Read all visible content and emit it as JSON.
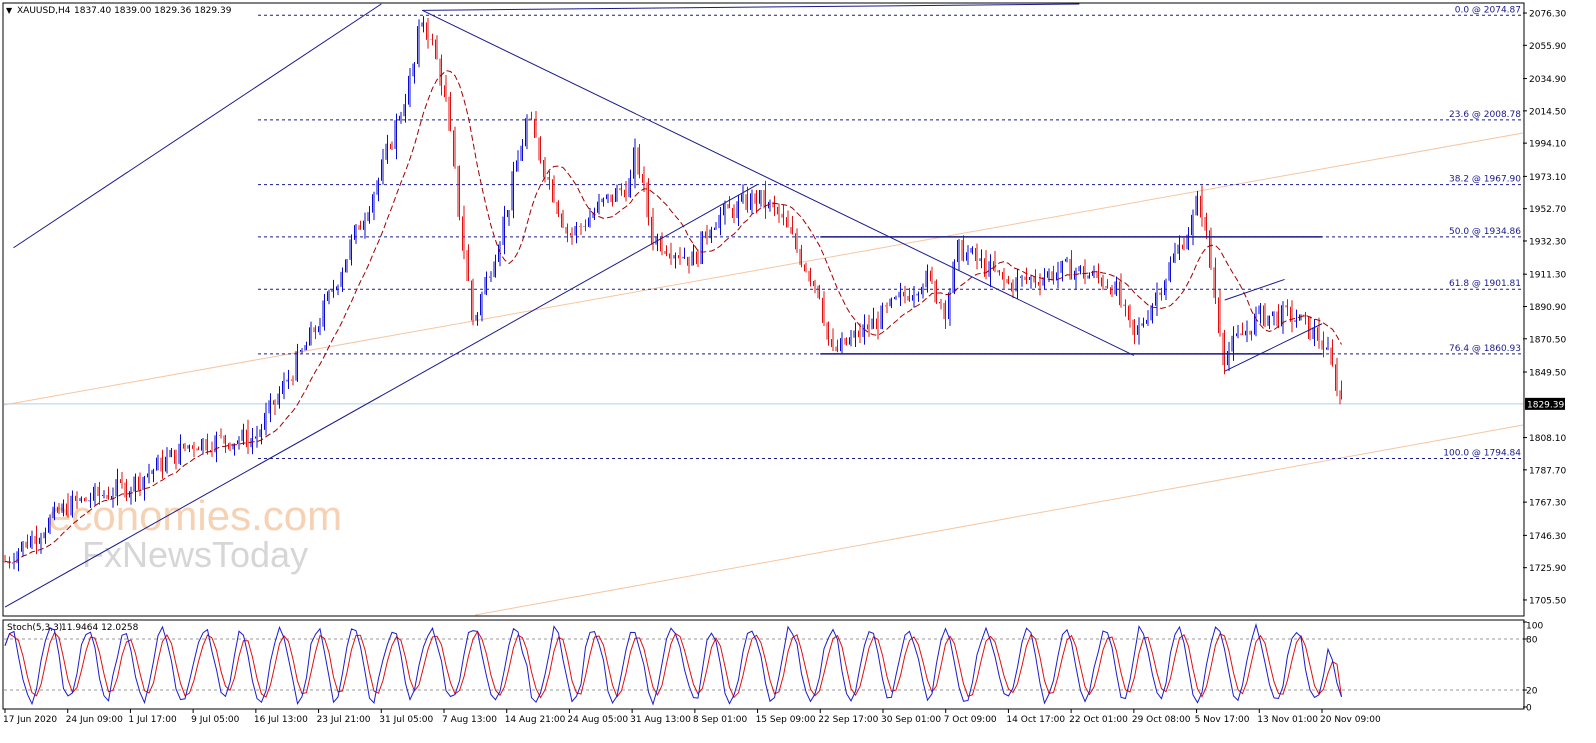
{
  "header": {
    "symbol": "XAUUSD,H4",
    "ohlc": "1837.40 1839.00 1829.36 1829.39"
  },
  "stoch_header": {
    "label": "Stoch(5,3,3)",
    "values": "11.9464 12.0258"
  },
  "current_price_label": "1829.39",
  "watermark": {
    "line1": "economies.com",
    "line2": "FxNewsToday"
  },
  "colors": {
    "bull": "#0a0ad2",
    "bear": "#e01010",
    "ma": "#a00000",
    "trend": "#1a1a8c",
    "fib": "#1a1a8c",
    "peach": "#f5c6a0",
    "stoch_main": "#1c1ccc",
    "stoch_signal": "#e01010",
    "current_price_line": "#a8d8e8",
    "watermark": "#f4c29a",
    "watermark2": "#c9c9c9"
  },
  "chart_data": [
    {
      "type": "candlestick",
      "title": "XAUUSD,H4",
      "ylim": [
        1696.0,
        2082.0
      ],
      "y_ticks": [
        "2076.30",
        "2055.90",
        "2034.90",
        "2014.50",
        "1994.10",
        "1973.10",
        "1952.70",
        "1932.30",
        "1911.30",
        "1890.90",
        "1870.50",
        "1849.50",
        "1829.39",
        "1808.10",
        "1787.70",
        "1767.30",
        "1746.30",
        "1725.90",
        "1705.50"
      ],
      "x_ticks": [
        "17 Jun 2020",
        "24 Jun 09:00",
        "1 Jul 17:00",
        "9 Jul 05:00",
        "16 Jul 13:00",
        "23 Jul 21:00",
        "31 Jul 05:00",
        "7 Aug 13:00",
        "14 Aug 21:00",
        "24 Aug 05:00",
        "31 Aug 13:00",
        "8 Sep 01:00",
        "15 Sep 09:00",
        "22 Sep 17:00",
        "30 Sep 01:00",
        "7 Oct 09:00",
        "14 Oct 17:00",
        "22 Oct 01:00",
        "29 Oct 08:00",
        "5 Nov 17:00",
        "13 Nov 01:00",
        "20 Nov 09:00"
      ],
      "fib_levels": [
        {
          "label": "0.0 @ 2074.87",
          "value": 2074.87
        },
        {
          "label": "23.6 @ 2008.78",
          "value": 2008.78
        },
        {
          "label": "38.2 @ 1967.90",
          "value": 1967.9
        },
        {
          "label": "50.0 @ 1934.86",
          "value": 1934.86
        },
        {
          "label": "61.8 @ 1901.81",
          "value": 1901.81
        },
        {
          "label": "76.4 @ 1860.93",
          "value": 1860.93
        },
        {
          "label": "100.0 @ 1794.84",
          "value": 1794.84
        }
      ],
      "current_price": 1829.39,
      "price_path": [
        [
          "17 Jun 2020",
          1730
        ],
        [
          "24 Jun 09:00",
          1765
        ],
        [
          "1 Jul 17:00",
          1778
        ],
        [
          "9 Jul 05:00",
          1805
        ],
        [
          "16 Jul 13:00",
          1808
        ],
        [
          "23 Jul 21:00",
          1880
        ],
        [
          "31 Jul 05:00",
          1975
        ],
        [
          "4 Aug",
          2040
        ],
        [
          "5 Aug",
          2074.87
        ],
        [
          "6 Aug",
          2060
        ],
        [
          "7 Aug 13:00",
          2030
        ],
        [
          "11 Aug",
          1880
        ],
        [
          "14 Aug 21:00",
          1950
        ],
        [
          "18 Aug",
          2010
        ],
        [
          "24 Aug 05:00",
          1935
        ],
        [
          "28 Aug",
          1955
        ],
        [
          "31 Aug 13:00",
          1970
        ],
        [
          "1 Sep",
          1990
        ],
        [
          "3 Sep",
          1935
        ],
        [
          "8 Sep 01:00",
          1920
        ],
        [
          "10 Sep",
          1945
        ],
        [
          "15 Sep 09:00",
          1960
        ],
        [
          "18 Sep",
          1948
        ],
        [
          "22 Sep 17:00",
          1900
        ],
        [
          "24 Sep",
          1860
        ],
        [
          "30 Sep 01:00",
          1885
        ],
        [
          "5 Oct",
          1910
        ],
        [
          "7 Oct 09:00",
          1890
        ],
        [
          "9 Oct",
          1928
        ],
        [
          "14 Oct 17:00",
          1905
        ],
        [
          "22 Oct 01:00",
          1915
        ],
        [
          "27 Oct",
          1905
        ],
        [
          "29 Oct 08:00",
          1870
        ],
        [
          "5 Nov 17:00",
          1950
        ],
        [
          "6 Nov",
          1965
        ],
        [
          "9 Nov",
          1860
        ],
        [
          "13 Nov 01:00",
          1885
        ],
        [
          "17 Nov",
          1885
        ],
        [
          "20 Nov 09:00",
          1870
        ],
        [
          "23 Nov",
          1829.39
        ]
      ],
      "trendlines": [
        {
          "name": "upper channel",
          "from": [
            "18 Jun",
            1928
          ],
          "to": [
            "31 Jul 05:00",
            2082
          ]
        },
        {
          "name": "rising trendline",
          "from": [
            "17 Jun 2020",
            1701
          ],
          "to": [
            "15 Sep 09:00",
            1968
          ]
        },
        {
          "name": "parallel rising line",
          "from": [
            "5 Aug",
            2078
          ],
          "to": [
            "23 Oct",
            2082
          ]
        },
        {
          "name": "falling trendline",
          "from": [
            "5 Aug",
            2078
          ],
          "to": [
            "29 Oct 08:00",
            1860
          ]
        },
        {
          "name": "range top",
          "from": [
            "22 Sep 17:00",
            1934.86
          ],
          "to": [
            "20 Nov 09:00",
            1934.86
          ]
        },
        {
          "name": "range bottom",
          "from": [
            "22 Sep 17:00",
            1860.93
          ],
          "to": [
            "20 Nov 09:00",
            1860.93
          ]
        },
        {
          "name": "flag upper",
          "from": [
            "9 Nov",
            1895
          ],
          "to": [
            "16 Nov",
            1908
          ]
        },
        {
          "name": "flag lower",
          "from": [
            "9 Nov",
            1850
          ],
          "to": [
            "20 Nov 09:00",
            1880
          ]
        }
      ]
    },
    {
      "type": "line",
      "title": "Stoch(5,3,3)",
      "ylim": [
        0,
        100
      ],
      "y_ticks": [
        "100",
        "80",
        "20",
        "0"
      ],
      "levels": [
        80,
        20
      ],
      "series": [
        {
          "name": "main",
          "last_value": 11.9464
        },
        {
          "name": "signal",
          "last_value": 12.0258
        }
      ]
    }
  ]
}
